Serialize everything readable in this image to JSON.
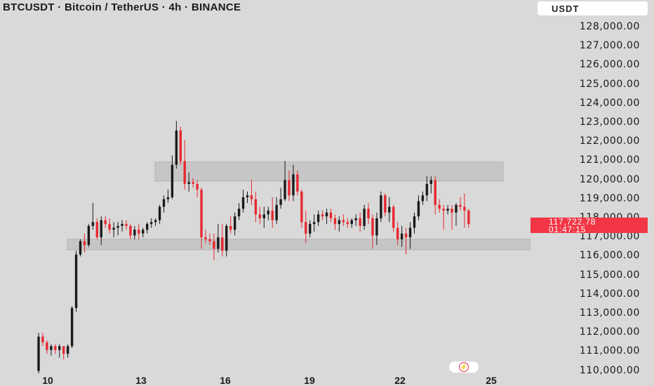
{
  "header": {
    "symbol_title": "BTCUSDT · Bitcoin / TetherUS · 4h · BINANCE",
    "currency": "USDT"
  },
  "price_axis": {
    "labels": [
      "128,000.00",
      "127,000.00",
      "126,000.00",
      "125,000.00",
      "124,000.00",
      "123,000.00",
      "122,000.00",
      "121,000.00",
      "120,000.00",
      "119,000.00",
      "118,000.00",
      "117,000.00",
      "116,000.00",
      "115,000.00",
      "114,000.00",
      "113,000.00",
      "112,000.00",
      "111,000.00",
      "110,000.00"
    ]
  },
  "last_price": {
    "price": "117,722.78",
    "countdown": "01:47:15",
    "color": "#f23645"
  },
  "time_axis": {
    "labels": [
      "10",
      "13",
      "16",
      "19",
      "22",
      "25"
    ]
  },
  "colors": {
    "up": "#1a1a1a",
    "down": "#e8282f",
    "zone": "#c6c6c6",
    "background": "#d9d9d9"
  },
  "chart_data": {
    "type": "candlestick",
    "symbol": "BTCUSDT",
    "interval": "4h",
    "exchange": "BINANCE",
    "ylim": [
      110000,
      128000
    ],
    "x_ticks": [
      "10",
      "13",
      "16",
      "19",
      "22",
      "25"
    ],
    "zones": [
      {
        "from": 119950,
        "to": 120950
      },
      {
        "from": 116350,
        "to": 116900
      }
    ],
    "candles": [
      [
        110000,
        112000,
        109800,
        111800
      ],
      [
        111800,
        112000,
        111300,
        111500
      ],
      [
        111500,
        111600,
        110900,
        111100
      ],
      [
        111100,
        111400,
        110800,
        111300
      ],
      [
        111300,
        111400,
        110900,
        111100
      ],
      [
        111100,
        111400,
        110700,
        111300
      ],
      [
        111300,
        111300,
        110600,
        110900
      ],
      [
        110900,
        111400,
        110700,
        111300
      ],
      [
        111300,
        113400,
        111200,
        113300
      ],
      [
        113300,
        116300,
        113100,
        116100
      ],
      [
        116100,
        116900,
        116000,
        116800
      ],
      [
        116800,
        117200,
        116200,
        116600
      ],
      [
        116600,
        117700,
        116500,
        117600
      ],
      [
        117600,
        118800,
        117400,
        117800
      ],
      [
        117800,
        118000,
        116900,
        117000
      ],
      [
        117000,
        118100,
        116600,
        117900
      ],
      [
        117900,
        118100,
        117500,
        117700
      ],
      [
        117700,
        118000,
        117200,
        117400
      ],
      [
        117400,
        117800,
        117000,
        117500
      ],
      [
        117500,
        117800,
        117100,
        117600
      ],
      [
        117600,
        117900,
        117300,
        117700
      ],
      [
        117700,
        117900,
        117400,
        117600
      ],
      [
        117600,
        117700,
        116900,
        117100
      ],
      [
        117100,
        117600,
        116900,
        117400
      ],
      [
        117400,
        117700,
        116900,
        117200
      ],
      [
        117200,
        117500,
        117000,
        117400
      ],
      [
        117400,
        117800,
        117200,
        117700
      ],
      [
        117700,
        118000,
        117500,
        117800
      ],
      [
        117800,
        118000,
        117600,
        117900
      ],
      [
        117900,
        118700,
        117700,
        118600
      ],
      [
        118600,
        119200,
        118300,
        119000
      ],
      [
        119000,
        119500,
        118800,
        119100
      ],
      [
        119100,
        121300,
        119000,
        120800
      ],
      [
        120800,
        123100,
        120600,
        122600
      ],
      [
        122600,
        122800,
        120800,
        121000
      ],
      [
        121000,
        122100,
        119500,
        119800
      ],
      [
        119800,
        120400,
        119400,
        119900
      ],
      [
        119900,
        120100,
        119600,
        119800
      ],
      [
        119800,
        120000,
        119100,
        119500
      ],
      [
        119500,
        119600,
        116400,
        117000
      ],
      [
        117000,
        117400,
        116700,
        116900
      ],
      [
        116900,
        117200,
        116600,
        116800
      ],
      [
        116800,
        117200,
        115800,
        116400
      ],
      [
        116400,
        117700,
        116200,
        117000
      ],
      [
        117000,
        117700,
        116000,
        116300
      ],
      [
        116300,
        117700,
        116000,
        117600
      ],
      [
        117600,
        118100,
        117200,
        117400
      ],
      [
        117400,
        118300,
        117100,
        118100
      ],
      [
        118100,
        118800,
        117900,
        118500
      ],
      [
        118500,
        119500,
        118300,
        119100
      ],
      [
        119100,
        119400,
        118800,
        119200
      ],
      [
        119200,
        120000,
        118700,
        119000
      ],
      [
        119000,
        119400,
        117800,
        118200
      ],
      [
        118200,
        118600,
        117700,
        118000
      ],
      [
        118000,
        118600,
        117500,
        118200
      ],
      [
        118200,
        118600,
        117900,
        118400
      ],
      [
        118400,
        119100,
        117500,
        117900
      ],
      [
        117900,
        119100,
        117700,
        118700
      ],
      [
        118700,
        119600,
        118500,
        119000
      ],
      [
        119000,
        121000,
        118900,
        120000
      ],
      [
        120000,
        120500,
        118900,
        119200
      ],
      [
        119200,
        120800,
        118900,
        120300
      ],
      [
        120300,
        120500,
        119200,
        119400
      ],
      [
        119400,
        119500,
        117500,
        117800
      ],
      [
        117800,
        118400,
        116700,
        117200
      ],
      [
        117200,
        117900,
        117000,
        117700
      ],
      [
        117700,
        118200,
        117300,
        117800
      ],
      [
        117800,
        118400,
        117600,
        118200
      ],
      [
        118200,
        118400,
        117900,
        118100
      ],
      [
        118100,
        118500,
        117700,
        118300
      ],
      [
        118300,
        118500,
        117800,
        118000
      ],
      [
        118000,
        118200,
        117400,
        117700
      ],
      [
        117700,
        118100,
        117300,
        117900
      ],
      [
        117900,
        118200,
        117600,
        117800
      ],
      [
        117800,
        118000,
        117500,
        117700
      ],
      [
        117700,
        118000,
        117500,
        117900
      ],
      [
        117900,
        118200,
        117600,
        118000
      ],
      [
        118000,
        118300,
        117300,
        117600
      ],
      [
        117600,
        118700,
        117400,
        118500
      ],
      [
        118500,
        118800,
        117700,
        118000
      ],
      [
        118000,
        118200,
        116400,
        117100
      ],
      [
        117100,
        118300,
        116600,
        118000
      ],
      [
        118000,
        119400,
        117800,
        119200
      ],
      [
        119200,
        119300,
        118100,
        118300
      ],
      [
        118300,
        119100,
        117800,
        118600
      ],
      [
        118600,
        118700,
        117300,
        117500
      ],
      [
        117500,
        117800,
        116600,
        116900
      ],
      [
        116900,
        117600,
        116500,
        117200
      ],
      [
        117200,
        117500,
        116100,
        117000
      ],
      [
        117000,
        117800,
        116400,
        117500
      ],
      [
        117500,
        118300,
        117200,
        118100
      ],
      [
        118100,
        119200,
        117900,
        118900
      ],
      [
        118900,
        119400,
        118700,
        119200
      ],
      [
        119200,
        120200,
        118900,
        119800
      ],
      [
        119800,
        120200,
        119300,
        120000
      ],
      [
        120000,
        120200,
        118200,
        118700
      ],
      [
        118700,
        119000,
        118300,
        118500
      ],
      [
        118500,
        118700,
        117400,
        118400
      ],
      [
        118400,
        118700,
        118200,
        118500
      ],
      [
        118500,
        118700,
        117400,
        118300
      ],
      [
        118300,
        118800,
        117600,
        118700
      ],
      [
        118700,
        119100,
        118400,
        118600
      ],
      [
        118600,
        119300,
        117500,
        118400
      ],
      [
        118400,
        118500,
        117500,
        117700
      ]
    ]
  }
}
